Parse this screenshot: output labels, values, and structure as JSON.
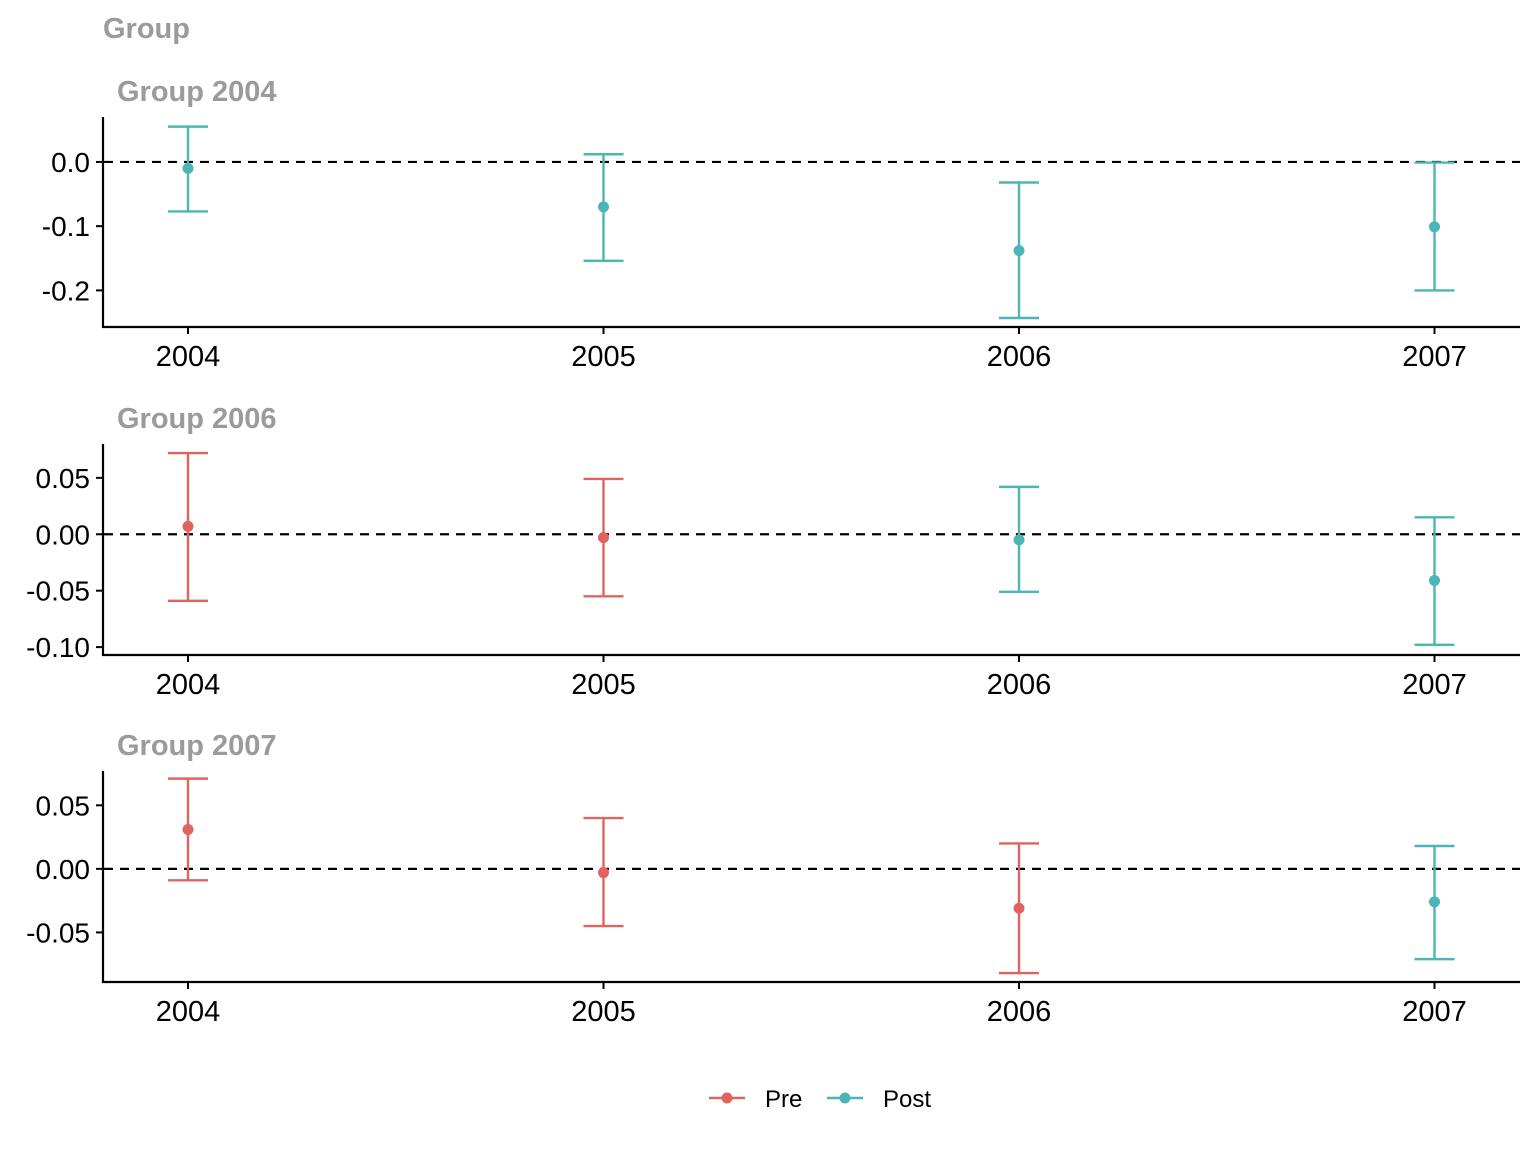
{
  "chart_data": {
    "type": "errorbar",
    "title": "Group",
    "x_categories": [
      "2004",
      "2005",
      "2006",
      "2007"
    ],
    "grid": false,
    "legend_placement": "bottom-center",
    "reference_line": 0,
    "colors": {
      "Pre": "#E0635F",
      "Post": "#4BB6B6"
    },
    "legend": [
      {
        "name": "Pre",
        "color": "#E0635F"
      },
      {
        "name": "Post",
        "color": "#4BB6B6"
      }
    ],
    "panels": [
      {
        "title": "Group 2004",
        "ylim": [
          -0.257,
          0.07
        ],
        "yticks": [
          0.0,
          -0.1,
          -0.2
        ],
        "ytick_labels": [
          "0.0",
          "-0.1",
          "-0.2"
        ],
        "points": [
          {
            "x": "2004",
            "y": -0.01,
            "low": -0.077,
            "high": 0.055,
            "group": "Post"
          },
          {
            "x": "2005",
            "y": -0.07,
            "low": -0.154,
            "high": 0.012,
            "group": "Post"
          },
          {
            "x": "2006",
            "y": -0.138,
            "low": -0.243,
            "high": -0.032,
            "group": "Post"
          },
          {
            "x": "2007",
            "y": -0.101,
            "low": -0.2,
            "high": -0.001,
            "group": "Post"
          }
        ]
      },
      {
        "title": "Group 2006",
        "ylim": [
          -0.107,
          0.08
        ],
        "yticks": [
          0.05,
          0.0,
          -0.05,
          -0.1
        ],
        "ytick_labels": [
          "0.05",
          "0.00",
          "-0.05",
          "-0.10"
        ],
        "points": [
          {
            "x": "2004",
            "y": 0.007,
            "low": -0.059,
            "high": 0.072,
            "group": "Pre"
          },
          {
            "x": "2005",
            "y": -0.003,
            "low": -0.055,
            "high": 0.049,
            "group": "Pre"
          },
          {
            "x": "2006",
            "y": -0.005,
            "low": -0.051,
            "high": 0.042,
            "group": "Post"
          },
          {
            "x": "2007",
            "y": -0.041,
            "low": -0.098,
            "high": 0.015,
            "group": "Post"
          }
        ]
      },
      {
        "title": "Group 2007",
        "ylim": [
          -0.089,
          0.077
        ],
        "yticks": [
          0.05,
          0.0,
          -0.05
        ],
        "ytick_labels": [
          "0.05",
          "0.00",
          "-0.05"
        ],
        "points": [
          {
            "x": "2004",
            "y": 0.031,
            "low": -0.009,
            "high": 0.071,
            "group": "Pre"
          },
          {
            "x": "2005",
            "y": -0.003,
            "low": -0.045,
            "high": 0.04,
            "group": "Pre"
          },
          {
            "x": "2006",
            "y": -0.031,
            "low": -0.082,
            "high": 0.02,
            "group": "Pre"
          },
          {
            "x": "2007",
            "y": -0.026,
            "low": -0.071,
            "high": 0.018,
            "group": "Post"
          }
        ]
      }
    ]
  }
}
